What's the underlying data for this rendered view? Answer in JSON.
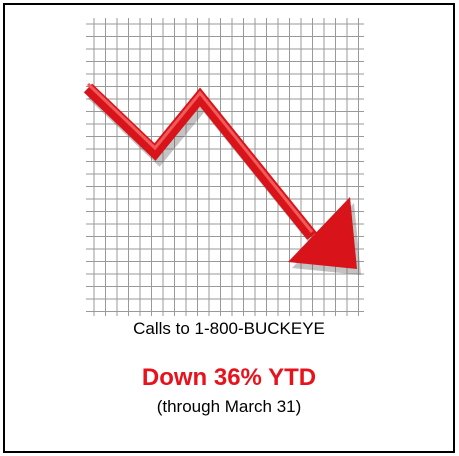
{
  "caption": "Calls to 1-800-BUCKEYE",
  "headline": "Down 36% YTD",
  "subline": "(through March 31)"
}
